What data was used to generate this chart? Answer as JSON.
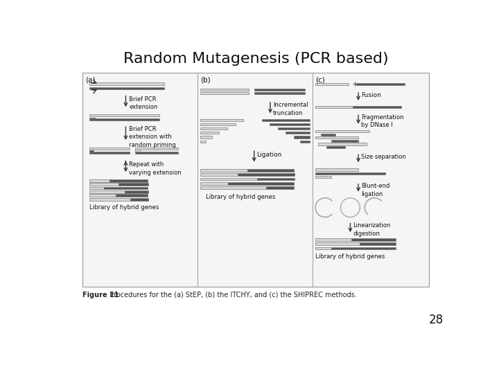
{
  "title": "Random Mutagenesis (PCR based)",
  "title_fontsize": 16,
  "page_number": "28",
  "page_num_fontsize": 12,
  "figure_caption_bold": "Figure 11",
  "figure_caption_rest": "  Procedures for the (a) StEP, (b) the ITCHY, and (c) the SHIPREC methods.",
  "bg_color": "#ffffff",
  "diagram_border": "#999999",
  "diagram_bg": "#f5f5f5",
  "text_color": "#111111",
  "caption_color": "#222222",
  "light_bar": "#d8d8d8",
  "dark_bar": "#555555",
  "bar_border": "#777777"
}
